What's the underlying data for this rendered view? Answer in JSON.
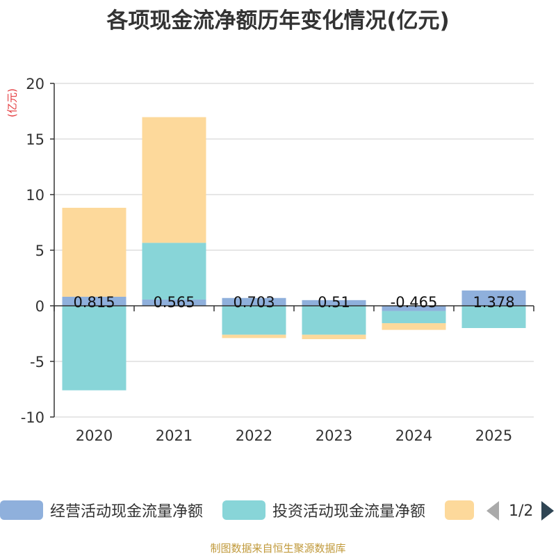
{
  "title": "各项现金流净额历年变化情况(亿元)",
  "unit_label": "(亿元)",
  "legend": {
    "items": [
      {
        "label": "经营活动现金流量净额",
        "color": "#8fb0dc"
      },
      {
        "label": "投资活动现金流量净额",
        "color": "#88d5d8"
      },
      {
        "label": "",
        "color": "#fdd99b"
      }
    ],
    "page_text": "1/2"
  },
  "footer": "制图数据来自恒生聚源数据库",
  "colors": {
    "unit": "#e4393c",
    "footer": "#c0993a",
    "grid": "#cccccc",
    "axis": "#333333"
  },
  "chart_data": {
    "type": "bar",
    "stacked": true,
    "categories": [
      "2020",
      "2021",
      "2022",
      "2023",
      "2024",
      "2025"
    ],
    "series": [
      {
        "name": "经营活动现金流量净额",
        "values": [
          0.815,
          0.565,
          0.703,
          0.51,
          -0.465,
          1.378
        ],
        "color": "#8fb0dc",
        "labels": [
          "0.815",
          "0.565",
          "0.703",
          "0.51",
          "-0.465",
          "1.378"
        ]
      },
      {
        "name": "投资活动现金流量净额",
        "values": [
          -7.6,
          5.1,
          -2.6,
          -2.6,
          -1.1,
          -2.0
        ],
        "color": "#88d5d8"
      },
      {
        "name": "",
        "values": [
          8.0,
          11.3,
          -0.3,
          -0.4,
          -0.6,
          0.0
        ],
        "color": "#fdd99b"
      }
    ],
    "ylim": [
      -10,
      20
    ],
    "yticks": [
      -10,
      -5,
      0,
      5,
      10,
      15,
      20
    ],
    "ylabel": "(亿元)",
    "xlabel": "",
    "grid": true
  }
}
